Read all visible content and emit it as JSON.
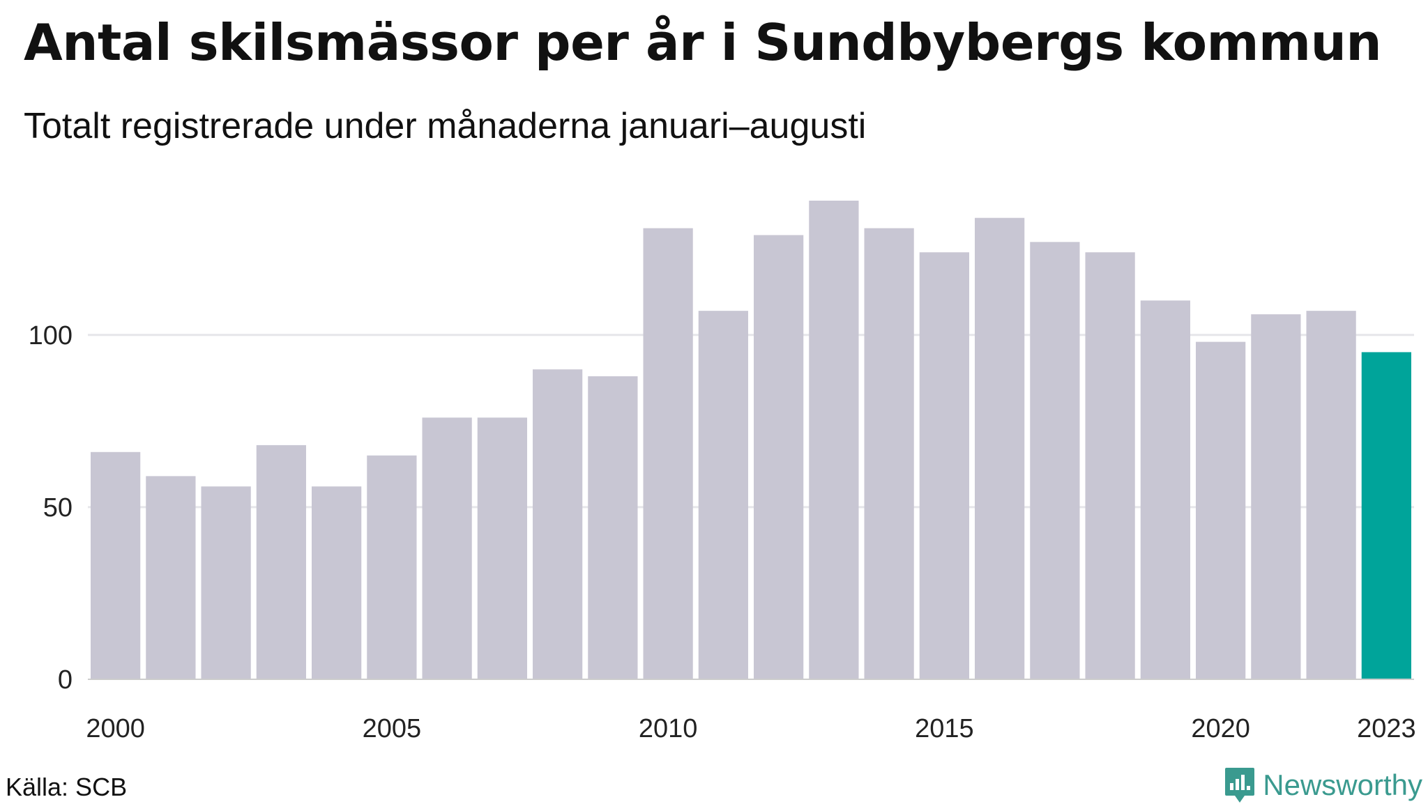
{
  "title": "Antal skilsmässor per år i Sundbybergs kommun",
  "subtitle": "Totalt registrerade under månaderna januari–augusti",
  "source": "Källa: SCB",
  "brand": {
    "name": "Newsworthy",
    "icon": "newsworthy-logo-icon",
    "color": "#3a9a8f"
  },
  "colors": {
    "bar": "#c8c6d3",
    "highlight": "#00a49a",
    "grid": "#e6e6ea",
    "axis": "#cccccc"
  },
  "chart_data": {
    "type": "bar",
    "categories": [
      2000,
      2001,
      2002,
      2003,
      2004,
      2005,
      2006,
      2007,
      2008,
      2009,
      2010,
      2011,
      2012,
      2013,
      2014,
      2015,
      2016,
      2017,
      2018,
      2019,
      2020,
      2021,
      2022,
      2023
    ],
    "values": [
      66,
      59,
      56,
      68,
      56,
      65,
      76,
      76,
      90,
      88,
      131,
      107,
      129,
      139,
      131,
      124,
      134,
      127,
      124,
      110,
      98,
      106,
      107,
      95
    ],
    "highlight_category": 2023,
    "x_tick_labels": [
      "2000",
      "2005",
      "2010",
      "2015",
      "2020",
      "2023"
    ],
    "y_ticks": [
      0,
      50,
      100
    ],
    "ylim": [
      0,
      139
    ],
    "grid": true,
    "legend": "none"
  }
}
